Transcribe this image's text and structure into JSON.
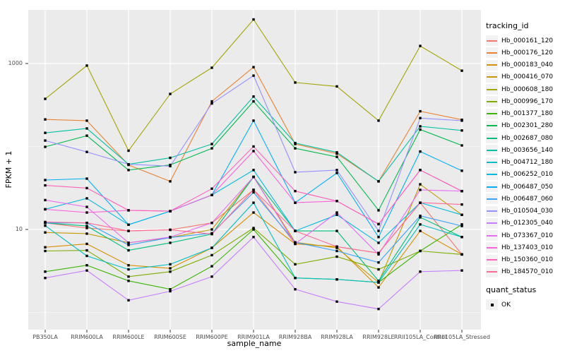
{
  "colors": {
    "panel_bg": "#EBEBEB",
    "gridline": "#FFFFFF",
    "point": "#000000",
    "legend_key_bg": "#F2F2F2",
    "axis_text": "#4D4D4D",
    "title_text": "#000000"
  },
  "axes": {
    "y_title": "FPKM + 1",
    "x_title": "sample_name",
    "y_tick_labels": [
      "1000",
      "10"
    ]
  },
  "legend": {
    "tracking_title": "tracking_id",
    "quant_title": "quant_status",
    "quant_items": [
      {
        "label": "OK",
        "marker": "black-square"
      }
    ]
  },
  "chart_data": {
    "type": "line",
    "title": "",
    "xlabel": "sample_name",
    "ylabel": "FPKM + 1",
    "y_scale": "log10",
    "y_ticks": [
      10,
      1000
    ],
    "y_minor_gridlines": [
      1,
      100
    ],
    "ylim": [
      0.62,
      4400
    ],
    "grid": "white-on-gray",
    "legend_position": "right",
    "point_marker": "small black square (quant_status OK)",
    "categories": [
      "PB350LA",
      "RRIM600LA",
      "RRIM600LE",
      "RRIM600SE",
      "RRIM600PE",
      "RRIM901LA",
      "RRIM928BA",
      "RRIM928LA",
      "RRIM928LE",
      "RRII105LA_Control",
      "RRII105LA_Stressed"
    ],
    "series": [
      {
        "name": "Hb_000161_120",
        "color": "#F8766D",
        "values": [
          12,
          10.4,
          9.6,
          9.9,
          12,
          30,
          6.7,
          6.2,
          5.2,
          21,
          5
        ]
      },
      {
        "name": "Hb_000176_120",
        "color": "#EA8331",
        "values": [
          212,
          205,
          60,
          38,
          350,
          905,
          107,
          82,
          38,
          266,
          210
        ]
      },
      {
        "name": "Hb_000183_040",
        "color": "#D89000",
        "values": [
          6.1,
          6.7,
          3.7,
          3.4,
          6,
          16,
          6.7,
          6.2,
          2.0,
          9.6,
          5
        ]
      },
      {
        "name": "Hb_000416_070",
        "color": "#C49A00",
        "values": [
          9.2,
          8.9,
          6.9,
          8,
          10,
          43,
          7,
          6,
          2.3,
          35,
          15
        ]
      },
      {
        "name": "Hb_000608_180",
        "color": "#A3A500",
        "values": [
          375,
          945,
          89,
          430,
          890,
          3400,
          590,
          530,
          205,
          1630,
          820
        ]
      },
      {
        "name": "Hb_000996_170",
        "color": "#7CAE00",
        "values": [
          5.5,
          5.6,
          2.7,
          3.1,
          4.9,
          10.4,
          3.8,
          4.7,
          3.3,
          5.5,
          5
        ]
      },
      {
        "name": "Hb_001377_180",
        "color": "#39B600",
        "values": [
          3.1,
          3.7,
          2.4,
          1.9,
          3.6,
          10,
          2.6,
          2.5,
          2.3,
          5.5,
          11.5
        ]
      },
      {
        "name": "Hb_002301_280",
        "color": "#00BB4E",
        "values": [
          99,
          135,
          52,
          60,
          95,
          350,
          95,
          75,
          17,
          160,
          103
        ]
      },
      {
        "name": "Hb_002687_080",
        "color": "#00BF7D",
        "values": [
          12,
          11,
          5.6,
          6.9,
          8.8,
          43,
          9.6,
          9.6,
          2.4,
          14,
          8.1
        ]
      },
      {
        "name": "Hb_003656_140",
        "color": "#00C1A3",
        "values": [
          146,
          165,
          61,
          73,
          107,
          400,
          110,
          85,
          38,
          175,
          156
        ]
      },
      {
        "name": "Hb_004712_180",
        "color": "#00BFC4",
        "values": [
          11.1,
          4.8,
          3.3,
          3.8,
          6.0,
          21,
          2.6,
          2.5,
          2.3,
          11.5,
          8.1
        ]
      },
      {
        "name": "Hb_006252_010",
        "color": "#00BAE0",
        "values": [
          17.5,
          23.7,
          11.4,
          16.6,
          26,
          52,
          9.6,
          15,
          6.9,
          21,
          15
        ]
      },
      {
        "name": "Hb_006487_050",
        "color": "#00B0F6",
        "values": [
          39.4,
          41,
          11.4,
          16.6,
          26,
          205,
          21,
          48,
          8.1,
          87,
          51
        ]
      },
      {
        "name": "Hb_006487_060",
        "color": "#35A2FF",
        "values": [
          12,
          12,
          6.5,
          8,
          9,
          28,
          7,
          5.5,
          4,
          14.6,
          11
        ]
      },
      {
        "name": "Hb_010504_030",
        "color": "#9590FF",
        "values": [
          118,
          86,
          61,
          58,
          330,
          715,
          49,
          52,
          9.6,
          220,
          205
        ]
      },
      {
        "name": "Hb_012305_040",
        "color": "#C77CFF",
        "values": [
          2.6,
          3.2,
          1.4,
          1.8,
          2.7,
          8.1,
          1.9,
          1.35,
          1.1,
          3.1,
          3.2
        ]
      },
      {
        "name": "Hb_073367_010",
        "color": "#E76BF3",
        "values": [
          22.6,
          18.7,
          6.9,
          8.1,
          12,
          43,
          6.7,
          16,
          5.0,
          30,
          29
        ]
      },
      {
        "name": "Hb_137403_010",
        "color": "#FA62DB",
        "values": [
          17.5,
          16,
          17,
          16.6,
          26,
          88,
          21,
          22,
          11.6,
          52,
          29
        ]
      },
      {
        "name": "Hb_150360_010",
        "color": "#FF62BC",
        "values": [
          34,
          31.5,
          17,
          16.6,
          31,
          100,
          29,
          22,
          11.6,
          52,
          29
        ]
      },
      {
        "name": "Hb_184570_010",
        "color": "#FF6A98",
        "values": [
          12.3,
          12,
          9.6,
          9.9,
          8.8,
          30,
          9.6,
          6.2,
          5.2,
          21,
          20
        ]
      }
    ],
    "quant_status": "OK"
  }
}
